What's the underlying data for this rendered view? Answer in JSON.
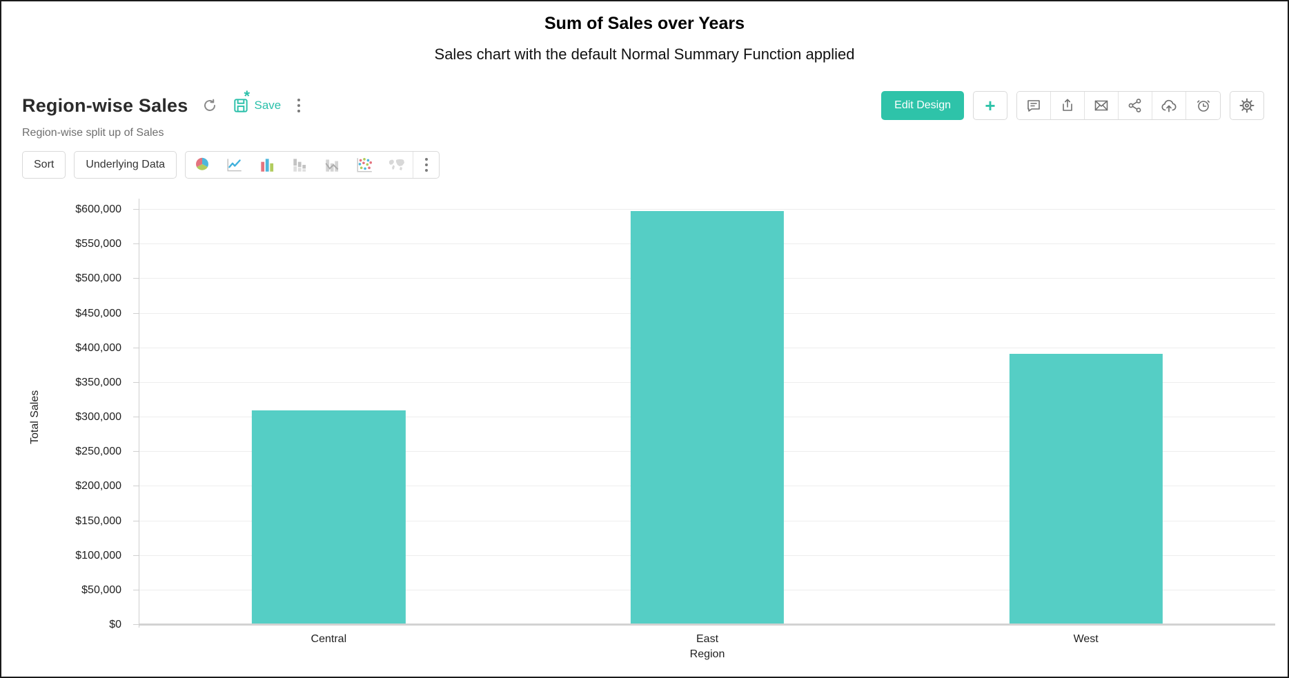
{
  "page": {
    "title": "Sum of Sales over Years",
    "subtitle": "Sales chart with the default Normal Summary Function applied"
  },
  "report": {
    "title": "Region-wise Sales",
    "description": "Region-wise split up of Sales",
    "save_label": "Save",
    "unsaved_marker": "*",
    "icons": [
      "refresh-icon",
      "save-icon",
      "more-options-icon"
    ]
  },
  "actions": {
    "edit_design_label": "Edit Design",
    "plus_label": "+",
    "icon_buttons": [
      "comment-icon",
      "export-icon",
      "email-icon",
      "share-icon",
      "cloud-upload-icon",
      "alarm-icon"
    ],
    "settings_icon": "gear-icon"
  },
  "toolbar": {
    "sort_label": "Sort",
    "underlying_data_label": "Underlying Data",
    "chart_type_icons": [
      "pie-chart-icon",
      "line-chart-icon",
      "bar-chart-icon",
      "stacked-bar-chart-icon",
      "bar-line-chart-icon",
      "scatter-chart-icon",
      "map-chart-icon",
      "more-chart-types-icon"
    ]
  },
  "colors": {
    "accent": "#2ec3a9",
    "bar": "#55cec5",
    "gridline": "#ededed",
    "axis": "#cfcfcf",
    "icon_gray": "#6f6f6f"
  },
  "chart_data": {
    "type": "bar",
    "categories": [
      "Central",
      "East",
      "West"
    ],
    "values": [
      310000,
      598000,
      392000
    ],
    "title": "Sum of Sales over Years",
    "xlabel": "Region",
    "ylabel": "Total Sales",
    "ylim": [
      0,
      600000
    ],
    "ytick_step": 50000,
    "ytick_prefix": "$",
    "grid": true,
    "legend": false,
    "bar_color": "#55cec5"
  }
}
